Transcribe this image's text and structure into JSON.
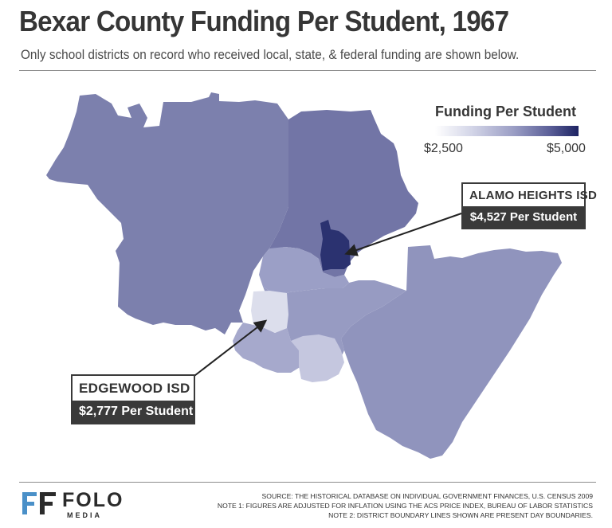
{
  "header": {
    "title": "Bexar County Funding Per Student, 1967",
    "subtitle": "Only school districts on record who received local, state, & federal funding are shown below."
  },
  "legend": {
    "title": "Funding Per Student",
    "min_label": "$2,500",
    "max_label": "$5,000",
    "min_value": 2500,
    "max_value": 5000,
    "color_low": "#ffffff",
    "color_high": "#1d2362"
  },
  "callouts": {
    "alamo_heights": {
      "name": "ALAMO HEIGHTS ISD",
      "value": "$4,527 Per Student"
    },
    "edgewood": {
      "name": "EDGEWOOD ISD",
      "value": "$2,777 Per Student"
    }
  },
  "footer": {
    "logo_main": "FOLO",
    "logo_sub": "MEDIA",
    "source": "SOURCE: THE HISTORICAL DATABASE ON INDIVIDUAL GOVERNMENT FINANCES, U.S. CENSUS 2009",
    "note1": "NOTE 1: FIGURES ARE ADJUSTED FOR INFLATION USING THE ACS PRICE INDEX, BUREAU OF LABOR STATISTICS",
    "note2": "NOTE 2: DISTRICT BOUNDARY LINES SHOWN ARE PRESENT DAY BOUNDARIES."
  },
  "colors": {
    "northwest": "#7c80ad",
    "north_central": "#7275a6",
    "alamo_heights": "#2b3270",
    "central": "#979bc2",
    "central_upper": "#9b9fc6",
    "southeast": "#9094bd",
    "edgewood": "#dcdeec",
    "southwest": "#a6a9cc",
    "south_light": "#c5c7df",
    "accent_logo": "#4a90c8"
  }
}
